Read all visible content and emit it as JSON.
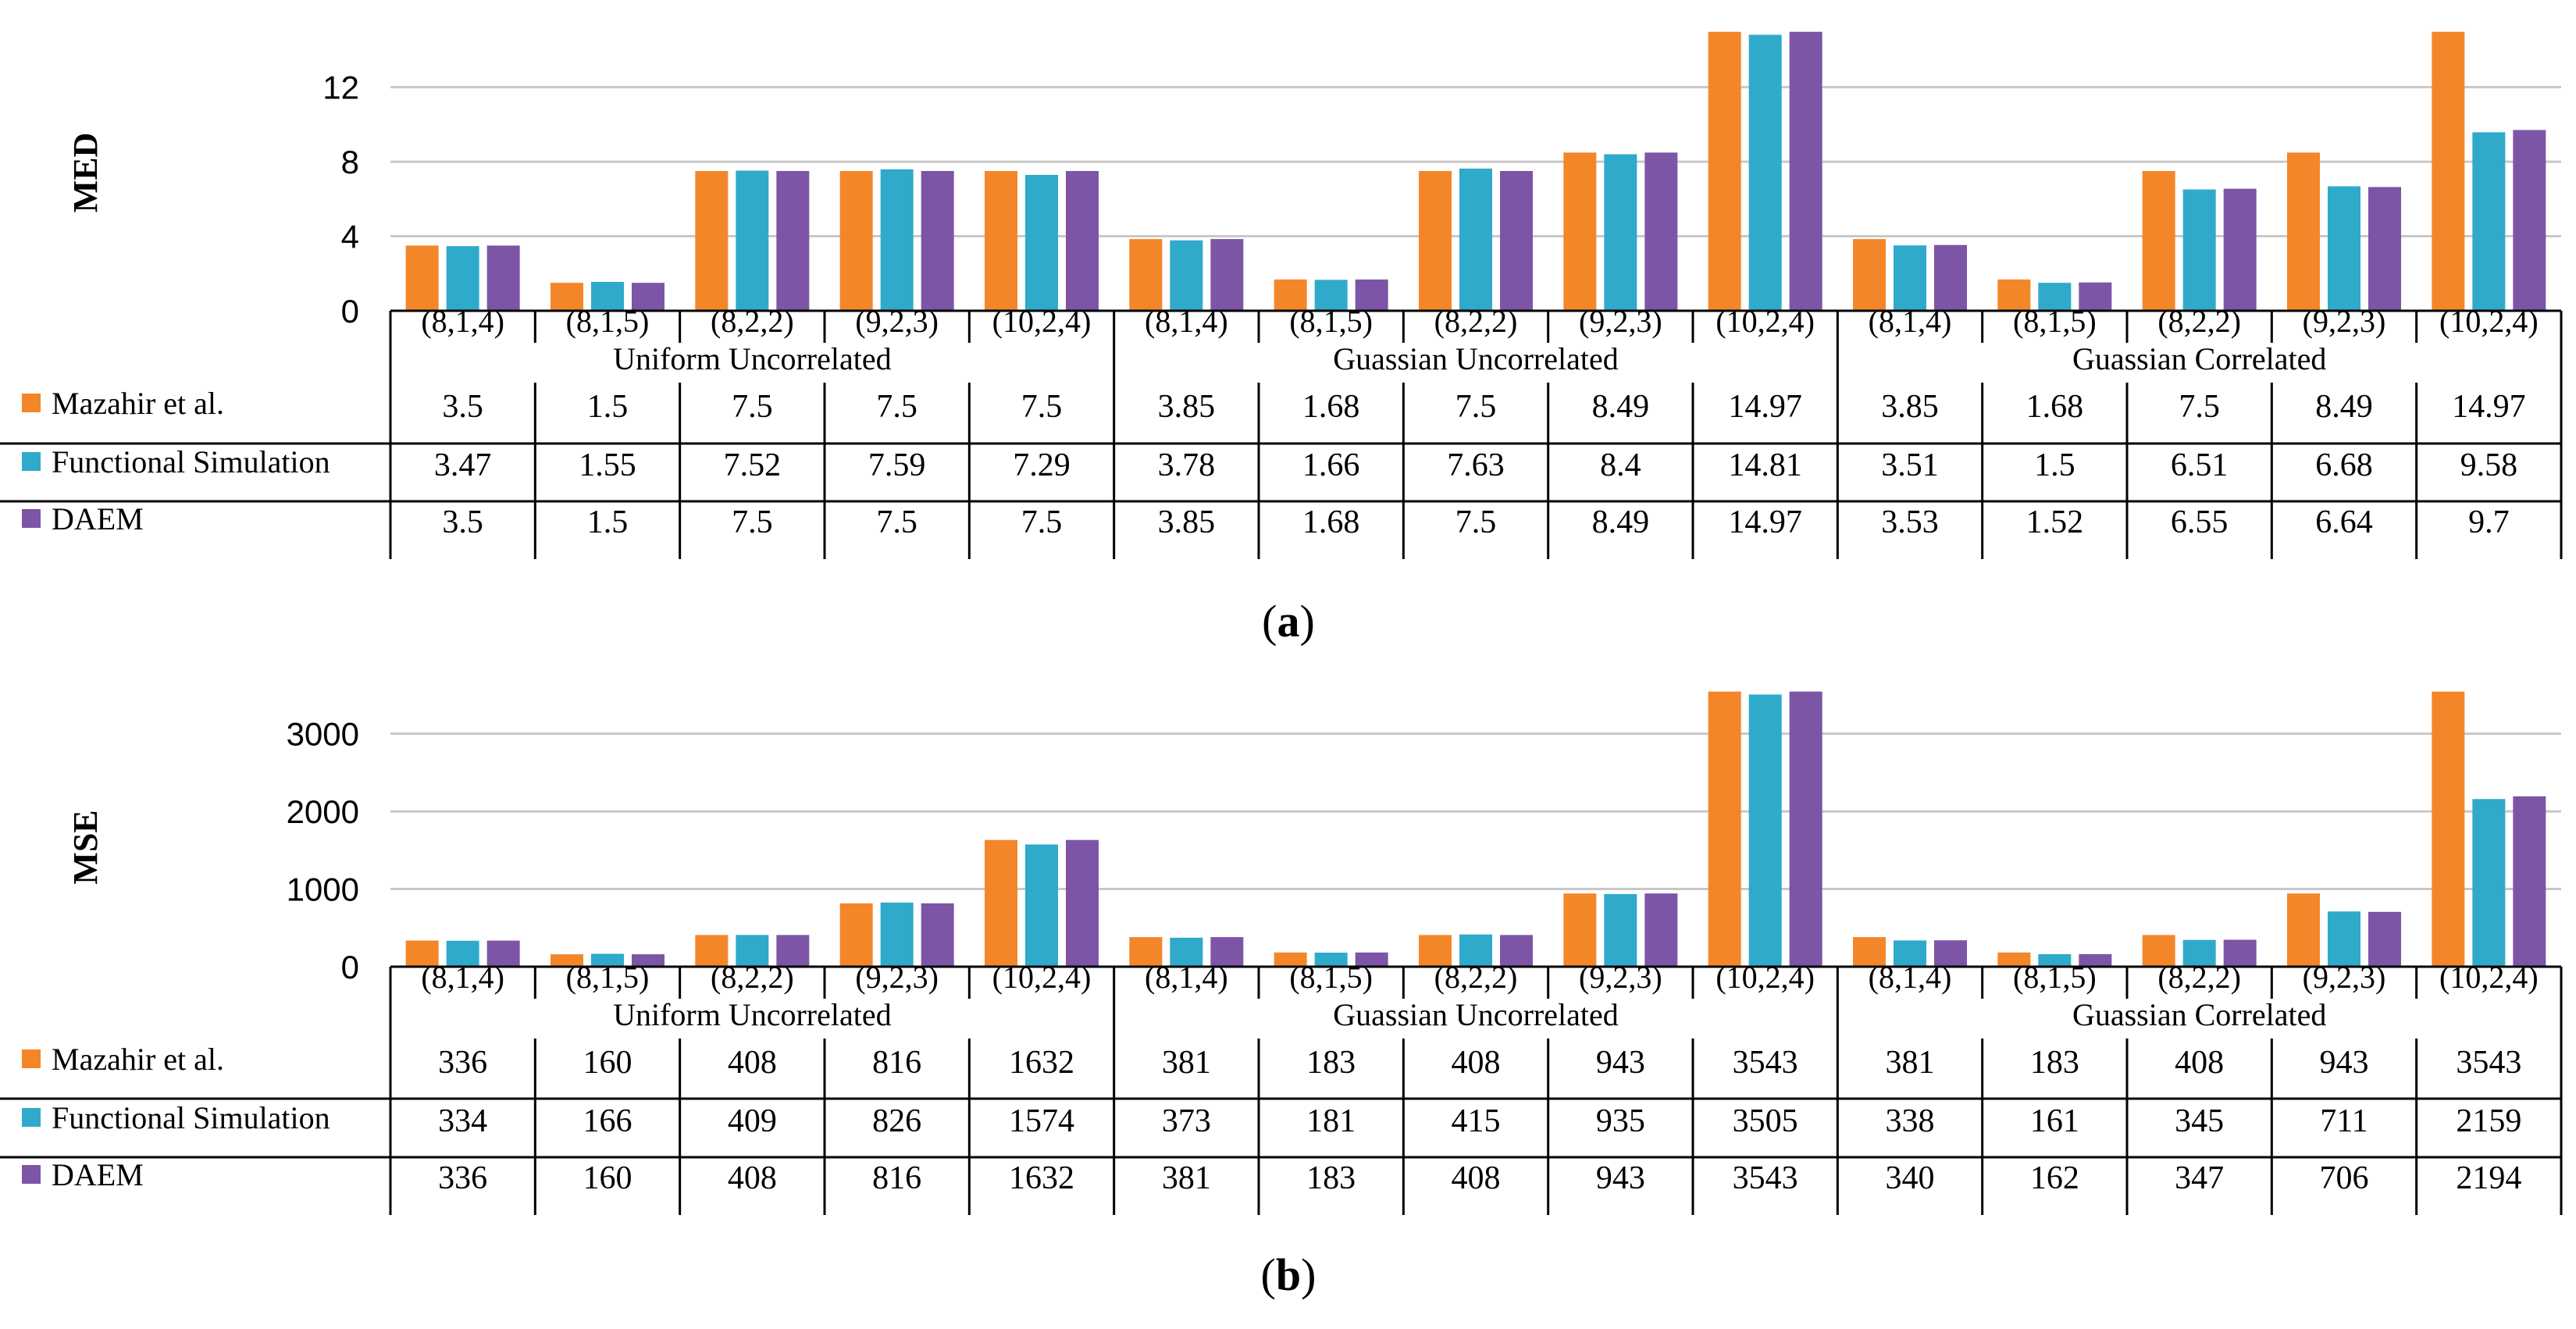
{
  "colors": {
    "series": [
      "#F4862A",
      "#2FAACB",
      "#7D55A6"
    ],
    "gridline": "#C8C8C8",
    "axis": "#000000"
  },
  "chart_data": [
    {
      "panel_label": "(a)",
      "type": "bar",
      "ylabel": "MED",
      "ylim": [
        0,
        15
      ],
      "yticks": [
        0,
        4,
        8,
        12
      ],
      "grid": true,
      "groups": [
        "Uniform Uncorrelated",
        "Guassian Uncorrelated",
        "Guassian Correlated"
      ],
      "categories": [
        "(8,1,4)",
        "(8,1,5)",
        "(8,2,2)",
        "(9,2,3)",
        "(10,2,4)",
        "(8,1,4)",
        "(8,1,5)",
        "(8,2,2)",
        "(9,2,3)",
        "(10,2,4)",
        "(8,1,4)",
        "(8,1,5)",
        "(8,2,2)",
        "(9,2,3)",
        "(10,2,4)"
      ],
      "series": [
        {
          "name": "Mazahir et al.",
          "values": [
            3.5,
            1.5,
            7.5,
            7.5,
            7.5,
            3.85,
            1.68,
            7.5,
            8.49,
            14.97,
            3.85,
            1.68,
            7.5,
            8.49,
            14.97
          ]
        },
        {
          "name": "Functional Simulation",
          "values": [
            3.47,
            1.55,
            7.52,
            7.59,
            7.29,
            3.78,
            1.66,
            7.63,
            8.4,
            14.81,
            3.51,
            1.5,
            6.51,
            6.68,
            9.58
          ]
        },
        {
          "name": "DAEM",
          "values": [
            3.5,
            1.5,
            7.5,
            7.5,
            7.5,
            3.85,
            1.68,
            7.5,
            8.49,
            14.97,
            3.53,
            1.52,
            6.55,
            6.64,
            9.7
          ]
        }
      ]
    },
    {
      "panel_label": "(b)",
      "type": "bar",
      "ylabel": "MSE",
      "ylim": [
        0,
        3600
      ],
      "yticks": [
        0,
        1000,
        2000,
        3000
      ],
      "grid": true,
      "groups": [
        "Uniform Uncorrelated",
        "Guassian Uncorrelated",
        "Guassian Correlated"
      ],
      "categories": [
        "(8,1,4)",
        "(8,1,5)",
        "(8,2,2)",
        "(9,2,3)",
        "(10,2,4)",
        "(8,1,4)",
        "(8,1,5)",
        "(8,2,2)",
        "(9,2,3)",
        "(10,2,4)",
        "(8,1,4)",
        "(8,1,5)",
        "(8,2,2)",
        "(9,2,3)",
        "(10,2,4)"
      ],
      "series": [
        {
          "name": "Mazahir et al.",
          "values": [
            336,
            160,
            408,
            816,
            1632,
            381,
            183,
            408,
            943,
            3543,
            381,
            183,
            408,
            943,
            3543
          ]
        },
        {
          "name": "Functional Simulation",
          "values": [
            334,
            166,
            409,
            826,
            1574,
            373,
            181,
            415,
            935,
            3505,
            338,
            161,
            345,
            711,
            2159
          ]
        },
        {
          "name": "DAEM",
          "values": [
            336,
            160,
            408,
            816,
            1632,
            381,
            183,
            408,
            943,
            3543,
            340,
            162,
            347,
            706,
            2194
          ]
        }
      ]
    }
  ]
}
